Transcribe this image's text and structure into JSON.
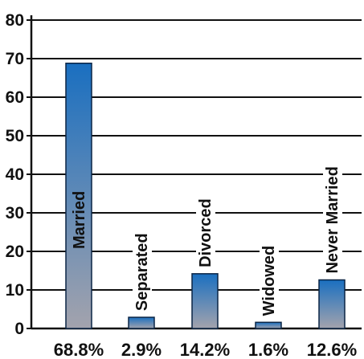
{
  "chart_data": {
    "type": "bar",
    "categories": [
      "Married",
      "Separated",
      "Divorced",
      "Widowed",
      "Never Married"
    ],
    "values": [
      68.8,
      2.9,
      14.2,
      1.6,
      12.6
    ],
    "value_labels": [
      "68.8%",
      "2.9%",
      "14.2%",
      "1.6%",
      "12.6%"
    ],
    "ylim": [
      0,
      80
    ],
    "yticks": [
      "0",
      "10",
      "20",
      "30",
      "40",
      "50",
      "60",
      "70",
      "80"
    ],
    "grid": true,
    "category_label_style": "vertical text above bar (inside bar when bar is tall)",
    "colors": {
      "bar_top": "#1a6fc0",
      "bar_bottom": "#a3a3ad",
      "bar_outline": "#0b2545",
      "grid": "#111111",
      "label_on_bar": "#ffffff",
      "label": "#111111"
    }
  }
}
